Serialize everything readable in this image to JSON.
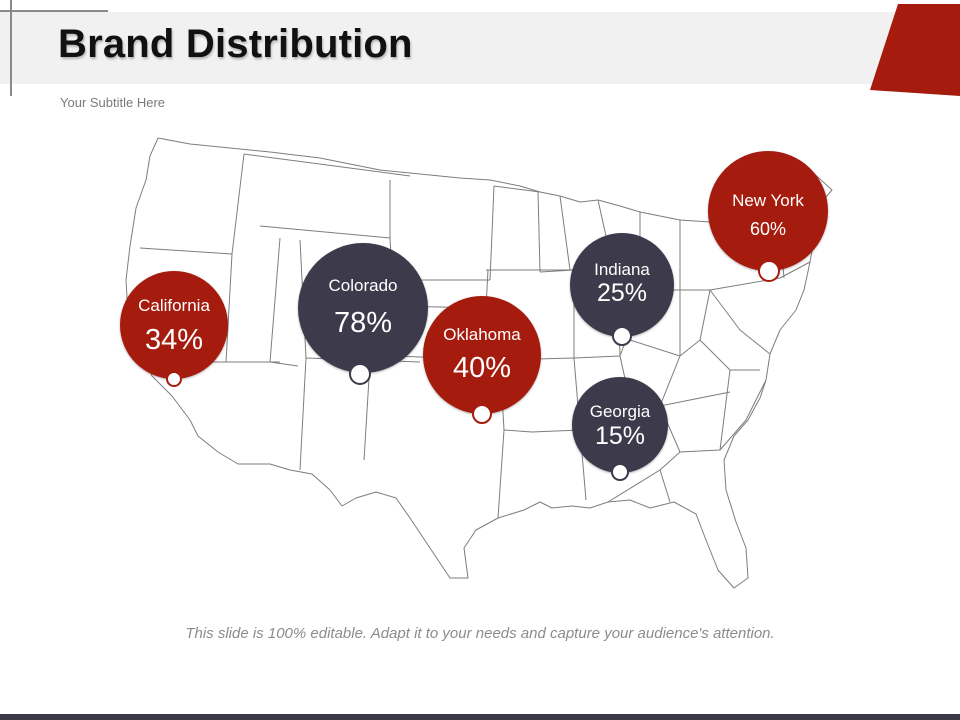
{
  "slide": {
    "title": "Brand Distribution",
    "subtitle": "Your Subtitle Here",
    "footer": "This slide is 100% editable. Adapt it to your needs and capture your audience's attention."
  },
  "colors": {
    "red": "#a51c0e",
    "dark": "#3d3a4b",
    "band": "#f1f1f1"
  },
  "markers": [
    {
      "state": "California",
      "value": "34%",
      "color": "red"
    },
    {
      "state": "Colorado",
      "value": "78%",
      "color": "dark"
    },
    {
      "state": "Oklahoma",
      "value": "40%",
      "color": "red"
    },
    {
      "state": "Indiana",
      "value": "25%",
      "color": "dark"
    },
    {
      "state": "New York",
      "value": "60%",
      "color": "red"
    },
    {
      "state": "Georgia",
      "value": "15%",
      "color": "dark"
    }
  ]
}
